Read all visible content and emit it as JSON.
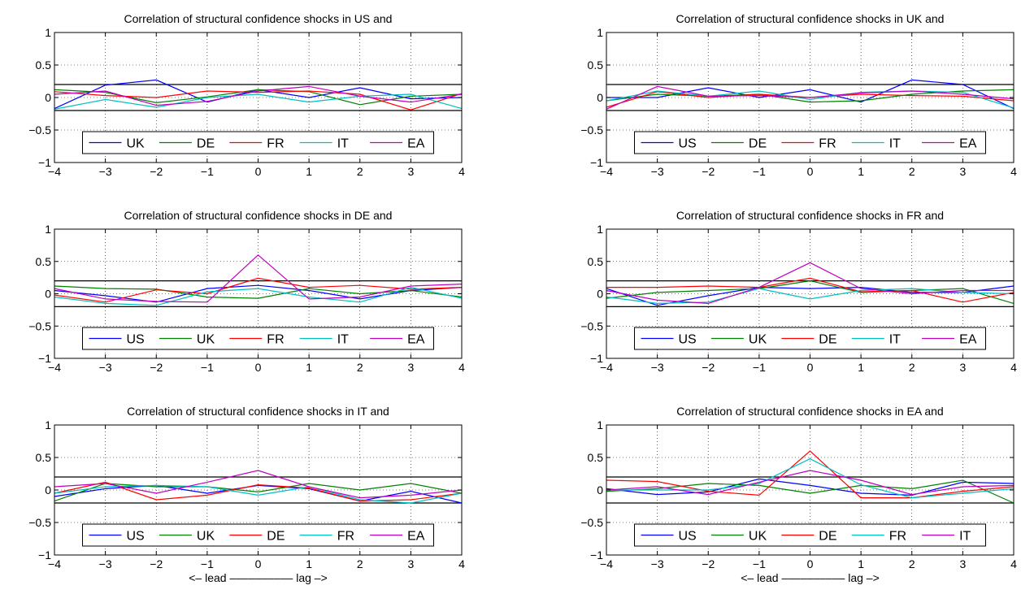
{
  "figure": {
    "xlabel": "<– lead –––––––––– lag –>"
  },
  "colors": {
    "blue": "#0000FF",
    "green": "#008000",
    "red": "#FF0000",
    "cyan": "#00BFBF",
    "magenta": "#BF00BF",
    "black": "#000000"
  },
  "chart_data": [
    {
      "type": "line",
      "title": "Correlation of structural confidence shocks in US and",
      "x": [
        -4,
        -3,
        -2,
        -1,
        0,
        1,
        2,
        3,
        4
      ],
      "xlim": [
        -4,
        4
      ],
      "ylim": [
        -1,
        1
      ],
      "xticks": [
        "−4",
        "−3",
        "−2",
        "−1",
        "0",
        "1",
        "2",
        "3",
        "4"
      ],
      "yticks": [
        "−1",
        "−0.5",
        "0",
        "0.5",
        "1"
      ],
      "bands": [
        0.2,
        -0.2
      ],
      "grid": true,
      "legend_position": "lower center",
      "series": [
        {
          "name": "UK",
          "color": "#0000FF",
          "values": [
            -0.17,
            0.19,
            0.27,
            -0.07,
            0.12,
            0.0,
            0.15,
            -0.02,
            0.0
          ]
        },
        {
          "name": "DE",
          "color": "#008000",
          "values": [
            0.12,
            0.08,
            -0.08,
            0.01,
            0.12,
            0.09,
            -0.11,
            0.02,
            0.05
          ]
        },
        {
          "name": "FR",
          "color": "#FF0000",
          "values": [
            0.09,
            0.03,
            0.0,
            0.1,
            0.08,
            0.1,
            0.05,
            -0.19,
            0.06
          ]
        },
        {
          "name": "IT",
          "color": "#00BFBF",
          "values": [
            -0.18,
            -0.03,
            -0.15,
            0.0,
            0.05,
            -0.07,
            0.02,
            0.05,
            -0.17
          ]
        },
        {
          "name": "EA",
          "color": "#BF00BF",
          "values": [
            0.05,
            0.1,
            -0.12,
            -0.06,
            0.1,
            0.17,
            0.02,
            -0.07,
            0.05
          ]
        }
      ]
    },
    {
      "type": "line",
      "title": "Correlation of structural confidence shocks in UK and",
      "x": [
        -4,
        -3,
        -2,
        -1,
        0,
        1,
        2,
        3,
        4
      ],
      "xlim": [
        -4,
        4
      ],
      "ylim": [
        -1,
        1
      ],
      "xticks": [
        "−4",
        "−3",
        "−2",
        "−1",
        "0",
        "1",
        "2",
        "3",
        "4"
      ],
      "yticks": [
        "−1",
        "−0.5",
        "0",
        "0.5",
        "1"
      ],
      "bands": [
        0.2,
        -0.2
      ],
      "grid": true,
      "legend_position": "lower center",
      "series": [
        {
          "name": "US",
          "color": "#0000FF",
          "values": [
            0.0,
            0.0,
            0.15,
            0.0,
            0.12,
            -0.07,
            0.27,
            0.2,
            -0.17
          ]
        },
        {
          "name": "DE",
          "color": "#008000",
          "values": [
            -0.05,
            0.05,
            0.02,
            0.05,
            -0.07,
            -0.05,
            0.05,
            0.1,
            0.12
          ]
        },
        {
          "name": "FR",
          "color": "#FF0000",
          "values": [
            -0.15,
            0.09,
            0.0,
            0.05,
            0.0,
            0.05,
            0.03,
            0.02,
            -0.05
          ]
        },
        {
          "name": "IT",
          "color": "#00BFBF",
          "values": [
            -0.05,
            0.1,
            0.02,
            0.1,
            -0.03,
            0.08,
            0.1,
            0.08,
            -0.16
          ]
        },
        {
          "name": "EA",
          "color": "#BF00BF",
          "values": [
            -0.18,
            0.17,
            0.02,
            0.03,
            0.0,
            0.07,
            0.1,
            0.05,
            -0.02
          ]
        }
      ]
    },
    {
      "type": "line",
      "title": "Correlation of structural confidence shocks in DE and",
      "x": [
        -4,
        -3,
        -2,
        -1,
        0,
        1,
        2,
        3,
        4
      ],
      "xlim": [
        -4,
        4
      ],
      "ylim": [
        -1,
        1
      ],
      "xticks": [
        "−4",
        "−3",
        "−2",
        "−1",
        "0",
        "1",
        "2",
        "3",
        "4"
      ],
      "yticks": [
        "−1",
        "−0.5",
        "0",
        "0.5",
        "1"
      ],
      "bands": [
        0.2,
        -0.2
      ],
      "grid": true,
      "legend_position": "lower center",
      "series": [
        {
          "name": "US",
          "color": "#0000FF",
          "values": [
            0.05,
            -0.03,
            -0.13,
            0.08,
            0.13,
            0.05,
            -0.08,
            0.05,
            0.1
          ]
        },
        {
          "name": "UK",
          "color": "#008000",
          "values": [
            0.12,
            0.08,
            0.07,
            -0.05,
            -0.07,
            0.08,
            0.0,
            0.05,
            -0.05
          ]
        },
        {
          "name": "FR",
          "color": "#FF0000",
          "values": [
            -0.02,
            -0.13,
            0.06,
            0.0,
            0.24,
            0.1,
            0.13,
            0.07,
            0.1
          ]
        },
        {
          "name": "IT",
          "color": "#00BFBF",
          "values": [
            -0.05,
            -0.15,
            -0.18,
            0.03,
            0.08,
            -0.05,
            -0.13,
            0.1,
            -0.07
          ]
        },
        {
          "name": "EA",
          "color": "#BF00BF",
          "values": [
            0.08,
            -0.08,
            -0.12,
            -0.13,
            0.6,
            -0.08,
            -0.05,
            0.12,
            0.15
          ]
        }
      ]
    },
    {
      "type": "line",
      "title": "Correlation of structural confidence shocks in FR and",
      "x": [
        -4,
        -3,
        -2,
        -1,
        0,
        1,
        2,
        3,
        4
      ],
      "xlim": [
        -4,
        4
      ],
      "ylim": [
        -1,
        1
      ],
      "xticks": [
        "−4",
        "−3",
        "−2",
        "−1",
        "0",
        "1",
        "2",
        "3",
        "4"
      ],
      "yticks": [
        "−1",
        "−0.5",
        "0",
        "0.5",
        "1"
      ],
      "bands": [
        0.2,
        -0.2
      ],
      "grid": true,
      "legend_position": "lower center",
      "series": [
        {
          "name": "US",
          "color": "#0000FF",
          "values": [
            0.08,
            -0.18,
            -0.03,
            0.1,
            0.08,
            0.1,
            0.02,
            0.02,
            0.12
          ]
        },
        {
          "name": "UK",
          "color": "#008000",
          "values": [
            -0.07,
            0.02,
            0.05,
            0.08,
            0.2,
            0.02,
            0.05,
            0.08,
            -0.15
          ]
        },
        {
          "name": "DE",
          "color": "#FF0000",
          "values": [
            0.1,
            0.1,
            0.12,
            0.1,
            0.24,
            0.03,
            0.05,
            -0.13,
            0.02
          ]
        },
        {
          "name": "IT",
          "color": "#00BFBF",
          "values": [
            -0.05,
            -0.15,
            -0.13,
            0.08,
            -0.08,
            0.05,
            0.08,
            0.02,
            0.0
          ]
        },
        {
          "name": "EA",
          "color": "#BF00BF",
          "values": [
            0.05,
            -0.1,
            -0.15,
            0.1,
            0.48,
            0.08,
            0.0,
            0.05,
            0.05
          ]
        }
      ]
    },
    {
      "type": "line",
      "title": "Correlation of structural confidence shocks in IT and",
      "x": [
        -4,
        -3,
        -2,
        -1,
        0,
        1,
        2,
        3,
        4
      ],
      "xlim": [
        -4,
        4
      ],
      "ylim": [
        -1,
        1
      ],
      "xticks": [
        "−4",
        "−3",
        "−2",
        "−1",
        "0",
        "1",
        "2",
        "3",
        "4"
      ],
      "yticks": [
        "−1",
        "−0.5",
        "0",
        "0.5",
        "1"
      ],
      "bands": [
        0.2,
        -0.2
      ],
      "grid": true,
      "legend_position": "lower center",
      "series": [
        {
          "name": "US",
          "color": "#0000FF",
          "values": [
            -0.1,
            0.02,
            0.07,
            -0.05,
            0.07,
            0.02,
            -0.17,
            -0.02,
            -0.2
          ]
        },
        {
          "name": "UK",
          "color": "#008000",
          "values": [
            -0.17,
            0.1,
            0.05,
            0.05,
            -0.03,
            0.1,
            0.0,
            0.1,
            -0.05
          ]
        },
        {
          "name": "DE",
          "color": "#FF0000",
          "values": [
            -0.05,
            0.12,
            -0.15,
            -0.08,
            0.08,
            0.03,
            -0.17,
            -0.15,
            -0.05
          ]
        },
        {
          "name": "FR",
          "color": "#00BFBF",
          "values": [
            -0.05,
            0.05,
            0.07,
            0.05,
            -0.08,
            0.05,
            -0.15,
            -0.2,
            -0.05
          ]
        },
        {
          "name": "EA",
          "color": "#BF00BF",
          "values": [
            0.05,
            0.1,
            -0.05,
            0.12,
            0.3,
            0.05,
            -0.12,
            -0.08,
            0.0
          ]
        }
      ]
    },
    {
      "type": "line",
      "title": "Correlation of structural confidence shocks in EA and",
      "x": [
        -4,
        -3,
        -2,
        -1,
        0,
        1,
        2,
        3,
        4
      ],
      "xlim": [
        -4,
        4
      ],
      "ylim": [
        -1,
        1
      ],
      "xticks": [
        "−4",
        "−3",
        "−2",
        "−1",
        "0",
        "1",
        "2",
        "3",
        "4"
      ],
      "yticks": [
        "−1",
        "−0.5",
        "0",
        "0.5",
        "1"
      ],
      "bands": [
        0.2,
        -0.2
      ],
      "grid": true,
      "legend_position": "lower center",
      "series": [
        {
          "name": "US",
          "color": "#0000FF",
          "values": [
            0.02,
            -0.07,
            -0.03,
            0.17,
            0.07,
            -0.05,
            -0.08,
            0.12,
            0.1
          ]
        },
        {
          "name": "UK",
          "color": "#008000",
          "values": [
            -0.02,
            0.02,
            0.1,
            0.07,
            -0.05,
            0.07,
            0.02,
            0.15,
            -0.2
          ]
        },
        {
          "name": "DE",
          "color": "#FF0000",
          "values": [
            0.15,
            0.13,
            -0.02,
            -0.08,
            0.6,
            -0.12,
            -0.12,
            -0.02,
            0.05
          ]
        },
        {
          "name": "FR",
          "color": "#00BFBF",
          "values": [
            0.0,
            0.0,
            0.0,
            0.1,
            0.48,
            0.08,
            -0.12,
            -0.05,
            0.02
          ]
        },
        {
          "name": "IT",
          "color": "#BF00BF",
          "values": [
            0.0,
            0.05,
            -0.07,
            0.12,
            0.3,
            0.15,
            -0.07,
            0.05,
            0.07
          ]
        }
      ]
    }
  ]
}
